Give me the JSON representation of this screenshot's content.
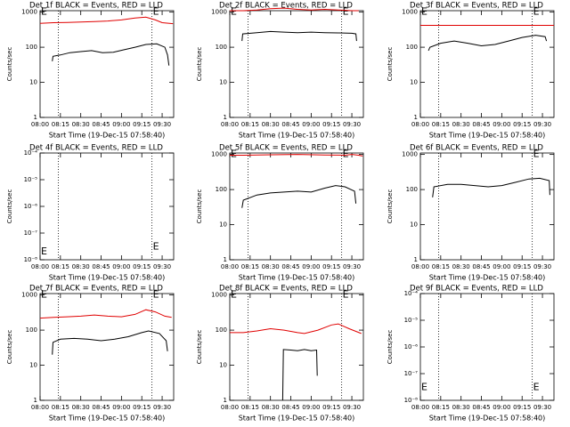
{
  "chart_data": [
    {
      "type": "line",
      "title": "Det 1f BLACK = Events, RED = LLD",
      "xlabel": "Start Time (19-Dec-15 07:58:40)",
      "ylabel": "Counts/sec",
      "log_y": true,
      "xlim": [
        0,
        98.5
      ],
      "xticks": [
        {
          "value": 0,
          "label": "08:00"
        },
        {
          "value": 15,
          "label": "08:15"
        },
        {
          "value": 30,
          "label": "08:30"
        },
        {
          "value": 45,
          "label": "08:45"
        },
        {
          "value": 60,
          "label": "09:00"
        },
        {
          "value": 75,
          "label": "09:15"
        },
        {
          "value": 90,
          "label": "09:30"
        }
      ],
      "ylim": [
        1,
        1100
      ],
      "yticks": [
        1,
        10,
        100,
        1000
      ],
      "markers": [
        13.5,
        82.5
      ],
      "annotations": [
        {
          "text": "E",
          "x": 0,
          "y": 1000
        },
        {
          "text": "E",
          "x": 82.5,
          "y": 1000
        }
      ],
      "series": [
        {
          "color": "#e00000",
          "x": [
            0,
            10,
            20,
            30,
            40,
            50,
            60,
            70,
            78,
            85,
            90,
            98
          ],
          "values": [
            480,
            500,
            510,
            520,
            540,
            560,
            600,
            680,
            720,
            600,
            500,
            470
          ]
        },
        {
          "color": "#000000",
          "x": [
            9,
            9.5,
            15,
            22,
            30,
            38,
            46,
            54,
            62,
            70,
            78,
            86,
            92,
            94,
            95
          ],
          "values": [
            40,
            55,
            60,
            70,
            75,
            80,
            70,
            72,
            85,
            100,
            120,
            125,
            100,
            60,
            30
          ]
        }
      ]
    },
    {
      "type": "line",
      "title": "Det 2f BLACK = Events, RED = LLD",
      "xlabel": "Start Time (19-Dec-15 07:58:40)",
      "ylabel": "Counts/sec",
      "log_y": true,
      "xlim": [
        0,
        98.5
      ],
      "xticks": [
        {
          "value": 0,
          "label": "08:00"
        },
        {
          "value": 15,
          "label": "08:15"
        },
        {
          "value": 30,
          "label": "08:30"
        },
        {
          "value": 45,
          "label": "08:45"
        },
        {
          "value": 60,
          "label": "09:00"
        },
        {
          "value": 75,
          "label": "09:15"
        },
        {
          "value": 90,
          "label": "09:30"
        }
      ],
      "ylim": [
        1,
        1100
      ],
      "yticks": [
        1,
        10,
        100,
        1000
      ],
      "markers": [
        13.5,
        82.5
      ],
      "annotations": [
        {
          "text": "E",
          "x": 0,
          "y": 1000
        },
        {
          "text": "E",
          "x": 82.5,
          "y": 1000
        }
      ],
      "series": [
        {
          "color": "#e00000",
          "x": [
            0,
            10,
            20,
            30,
            40,
            50,
            60,
            70,
            80,
            90,
            95
          ],
          "values": [
            1100,
            1100,
            1150,
            1250,
            1300,
            1200,
            1150,
            1200,
            1150,
            1100,
            1100
          ]
        },
        {
          "color": "#000000",
          "x": [
            9,
            9.5,
            20,
            30,
            40,
            50,
            60,
            70,
            80,
            90,
            93,
            93.5
          ],
          "values": [
            150,
            240,
            260,
            280,
            270,
            260,
            270,
            260,
            255,
            250,
            240,
            150
          ]
        }
      ]
    },
    {
      "type": "line",
      "title": "Det 3f BLACK = Events, RED = LLD",
      "xlabel": "Start Time (19-Dec-15 07:58:40)",
      "ylabel": "Counts/sec",
      "log_y": true,
      "xlim": [
        0,
        98.5
      ],
      "xticks": [
        {
          "value": 0,
          "label": "08:00"
        },
        {
          "value": 15,
          "label": "08:15"
        },
        {
          "value": 30,
          "label": "08:30"
        },
        {
          "value": 45,
          "label": "08:45"
        },
        {
          "value": 60,
          "label": "09:00"
        },
        {
          "value": 75,
          "label": "09:15"
        },
        {
          "value": 90,
          "label": "09:30"
        }
      ],
      "ylim": [
        1,
        1100
      ],
      "yticks": [
        1,
        10,
        100,
        1000
      ],
      "markers": [
        13.5,
        82.5
      ],
      "annotations": [
        {
          "text": "E",
          "x": 0,
          "y": 1000
        },
        {
          "text": "E",
          "x": 82.5,
          "y": 1000
        }
      ],
      "series": [
        {
          "color": "#e00000",
          "x": [
            0,
            98.5
          ],
          "values": [
            420,
            420
          ]
        },
        {
          "color": "#000000",
          "x": [
            6,
            7,
            15,
            25,
            35,
            45,
            55,
            65,
            75,
            85,
            92,
            93
          ],
          "values": [
            80,
            100,
            130,
            150,
            130,
            110,
            120,
            150,
            190,
            220,
            200,
            150
          ]
        }
      ]
    },
    {
      "type": "line",
      "title": "Det 4f BLACK = Events, RED = LLD",
      "xlabel": "Start Time (19-Dec-15 07:58:40)",
      "ylabel": "Counts/sec",
      "log_y": true,
      "xlim": [
        0,
        98.5
      ],
      "xticks": [
        {
          "value": 0,
          "label": "08:00"
        },
        {
          "value": 15,
          "label": "08:15"
        },
        {
          "value": 30,
          "label": "08:30"
        },
        {
          "value": 45,
          "label": "08:45"
        },
        {
          "value": 60,
          "label": "09:00"
        },
        {
          "value": 75,
          "label": "09:15"
        },
        {
          "value": 90,
          "label": "09:30"
        }
      ],
      "ylim": [
        1e-08,
        0.0001
      ],
      "yticks": [
        {
          "value": 1e-08,
          "label": "10⁻⁸"
        },
        {
          "value": 1e-07,
          "label": "10⁻⁷"
        },
        {
          "value": 1e-06,
          "label": "10⁻⁶"
        },
        {
          "value": 1e-05,
          "label": "10⁻⁵"
        },
        {
          "value": 0.0001,
          "label": "10⁻⁴"
        }
      ],
      "markers": [
        13.5,
        82.5
      ],
      "annotations": [
        {
          "text": "E",
          "x": 0,
          "y": 2e-08
        },
        {
          "text": "E",
          "x": 82.5,
          "y": 3e-08
        }
      ],
      "series": []
    },
    {
      "type": "line",
      "title": "Det 5f BLACK = Events, RED = LLD",
      "xlabel": "Start Time (19-Dec-15 07:58:40)",
      "ylabel": "Counts/sec",
      "log_y": true,
      "xlim": [
        0,
        98.5
      ],
      "xticks": [
        {
          "value": 0,
          "label": "08:00"
        },
        {
          "value": 15,
          "label": "08:15"
        },
        {
          "value": 30,
          "label": "08:30"
        },
        {
          "value": 45,
          "label": "08:45"
        },
        {
          "value": 60,
          "label": "09:00"
        },
        {
          "value": 75,
          "label": "09:15"
        },
        {
          "value": 90,
          "label": "09:30"
        }
      ],
      "ylim": [
        1,
        1100
      ],
      "yticks": [
        1,
        10,
        100,
        1000
      ],
      "markers": [
        13.5,
        82.5
      ],
      "annotations": [
        {
          "text": "E",
          "x": 0,
          "y": 1000
        },
        {
          "text": "E",
          "x": 82.5,
          "y": 1000
        }
      ],
      "series": [
        {
          "color": "#e00000",
          "x": [
            0,
            10,
            30,
            50,
            70,
            85,
            90,
            95,
            98
          ],
          "values": [
            950,
            950,
            980,
            1000,
            970,
            950,
            1000,
            950,
            900
          ]
        },
        {
          "color": "#000000",
          "x": [
            9,
            10,
            20,
            30,
            40,
            50,
            60,
            70,
            78,
            85,
            92,
            93
          ],
          "values": [
            30,
            50,
            70,
            80,
            85,
            90,
            85,
            110,
            130,
            120,
            90,
            40
          ]
        }
      ]
    },
    {
      "type": "line",
      "title": "Det 6f BLACK = Events, RED = LLD",
      "xlabel": "Start Time (19-Dec-15 07:58:40)",
      "ylabel": "Counts/sec",
      "log_y": true,
      "xlim": [
        0,
        98.5
      ],
      "xticks": [
        {
          "value": 0,
          "label": "08:00"
        },
        {
          "value": 15,
          "label": "08:15"
        },
        {
          "value": 30,
          "label": "08:30"
        },
        {
          "value": 45,
          "label": "08:45"
        },
        {
          "value": 60,
          "label": "09:00"
        },
        {
          "value": 75,
          "label": "09:15"
        },
        {
          "value": 90,
          "label": "09:30"
        }
      ],
      "ylim": [
        1,
        1100
      ],
      "yticks": [
        1,
        10,
        100,
        1000
      ],
      "markers": [
        13.5,
        82.5
      ],
      "annotations": [
        {
          "text": "E",
          "x": 82.5,
          "y": 1000
        }
      ],
      "series": [
        {
          "color": "#000000",
          "x": [
            9,
            10,
            20,
            30,
            40,
            50,
            60,
            70,
            80,
            88,
            95,
            95.5
          ],
          "values": [
            60,
            120,
            140,
            140,
            130,
            120,
            130,
            160,
            200,
            210,
            180,
            70
          ]
        }
      ]
    },
    {
      "type": "line",
      "title": "Det 7f BLACK = Events, RED = LLD",
      "xlabel": "Start Time (19-Dec-15 07:58:40)",
      "ylabel": "Counts/sec",
      "log_y": true,
      "xlim": [
        0,
        98.5
      ],
      "xticks": [
        {
          "value": 0,
          "label": "08:00"
        },
        {
          "value": 15,
          "label": "08:15"
        },
        {
          "value": 30,
          "label": "08:30"
        },
        {
          "value": 45,
          "label": "08:45"
        },
        {
          "value": 60,
          "label": "09:00"
        },
        {
          "value": 75,
          "label": "09:15"
        },
        {
          "value": 90,
          "label": "09:30"
        }
      ],
      "ylim": [
        1,
        1100
      ],
      "yticks": [
        1,
        10,
        100,
        1000
      ],
      "markers": [
        13.5,
        82.5
      ],
      "annotations": [
        {
          "text": "E",
          "x": 0,
          "y": 1000
        },
        {
          "text": "E",
          "x": 82.5,
          "y": 1000
        }
      ],
      "series": [
        {
          "color": "#e00000",
          "x": [
            0,
            10,
            20,
            30,
            40,
            50,
            60,
            70,
            78,
            85,
            92,
            97
          ],
          "values": [
            220,
            230,
            240,
            250,
            270,
            250,
            240,
            280,
            380,
            330,
            250,
            230
          ]
        },
        {
          "color": "#000000",
          "x": [
            9,
            9.5,
            15,
            25,
            35,
            45,
            55,
            65,
            75,
            80,
            88,
            93,
            94
          ],
          "values": [
            20,
            45,
            55,
            58,
            55,
            50,
            55,
            65,
            85,
            95,
            80,
            50,
            25
          ]
        }
      ]
    },
    {
      "type": "line",
      "title": "Det 8f BLACK = Events, RED = LLD",
      "xlabel": "Start Time (19-Dec-15 07:58:40)",
      "ylabel": "Counts/sec",
      "log_y": true,
      "xlim": [
        0,
        98.5
      ],
      "xticks": [
        {
          "value": 0,
          "label": "08:00"
        },
        {
          "value": 15,
          "label": "08:15"
        },
        {
          "value": 30,
          "label": "08:30"
        },
        {
          "value": 45,
          "label": "08:45"
        },
        {
          "value": 60,
          "label": "09:00"
        },
        {
          "value": 75,
          "label": "09:15"
        },
        {
          "value": 90,
          "label": "09:30"
        }
      ],
      "ylim": [
        1,
        1100
      ],
      "yticks": [
        1,
        10,
        100,
        1000
      ],
      "markers": [
        13.5,
        82.5
      ],
      "annotations": [
        {
          "text": "E",
          "x": 0,
          "y": 1000
        },
        {
          "text": "E",
          "x": 82.5,
          "y": 1000
        }
      ],
      "series": [
        {
          "color": "#e00000",
          "x": [
            0,
            10,
            20,
            30,
            40,
            50,
            55,
            65,
            75,
            80,
            88,
            97
          ],
          "values": [
            85,
            85,
            95,
            110,
            100,
            85,
            80,
            100,
            140,
            150,
            110,
            80
          ]
        },
        {
          "color": "#000000",
          "x": [
            39,
            39.5,
            45,
            50,
            55,
            60,
            64,
            64.5
          ],
          "values": [
            1,
            28,
            27,
            26,
            28,
            26,
            27,
            5
          ]
        }
      ]
    },
    {
      "type": "line",
      "title": "Det 9f BLACK = Events, RED = LLD",
      "xlabel": "Start Time (19-Dec-15 07:58:40)",
      "ylabel": "Counts/sec",
      "log_y": true,
      "xlim": [
        0,
        98.5
      ],
      "xticks": [
        {
          "value": 0,
          "label": "08:00"
        },
        {
          "value": 15,
          "label": "08:15"
        },
        {
          "value": 30,
          "label": "08:30"
        },
        {
          "value": 45,
          "label": "08:45"
        },
        {
          "value": 60,
          "label": "09:00"
        },
        {
          "value": 75,
          "label": "09:15"
        },
        {
          "value": 90,
          "label": "09:30"
        }
      ],
      "ylim": [
        1e-08,
        0.0001
      ],
      "yticks": [
        {
          "value": 1e-08,
          "label": "10⁻⁸"
        },
        {
          "value": 1e-07,
          "label": "10⁻⁷"
        },
        {
          "value": 1e-06,
          "label": "10⁻⁶"
        },
        {
          "value": 1e-05,
          "label": "10⁻⁵"
        },
        {
          "value": 0.0001,
          "label": "10⁻⁴"
        }
      ],
      "markers": [
        13.5,
        82.5
      ],
      "annotations": [
        {
          "text": "E",
          "x": 0,
          "y": 3e-08
        },
        {
          "text": "E",
          "x": 82.5,
          "y": 3e-08
        }
      ],
      "series": []
    }
  ]
}
